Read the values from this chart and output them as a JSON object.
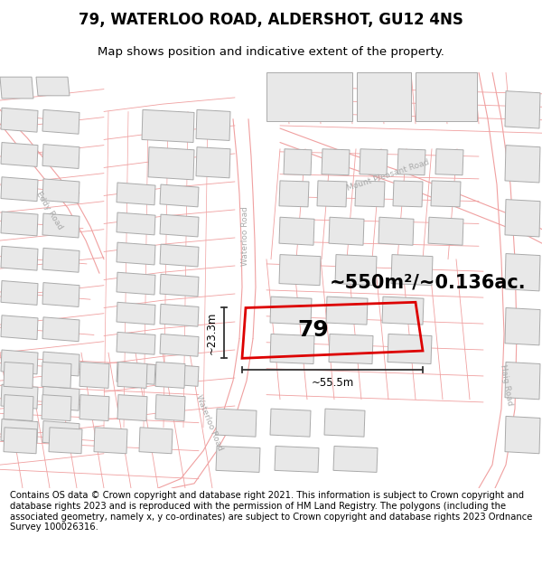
{
  "title": "79, WATERLOO ROAD, ALDERSHOT, GU12 4NS",
  "subtitle": "Map shows position and indicative extent of the property.",
  "area_text": "~550m²/~0.136ac.",
  "label_79": "79",
  "dim_width": "~55.5m",
  "dim_height": "~23.3m",
  "footer": "Contains OS data © Crown copyright and database right 2021. This information is subject to Crown copyright and database rights 2023 and is reproduced with the permission of HM Land Registry. The polygons (including the associated geometry, namely x, y co-ordinates) are subject to Crown copyright and database rights 2023 Ordnance Survey 100026316.",
  "map_bg": "#ffffff",
  "building_fill": "#e8e8e8",
  "building_edge": "#aaaaaa",
  "parcel_line": "#f0a0a0",
  "road_label_color": "#aaaaaa",
  "title_fontsize": 12,
  "subtitle_fontsize": 9.5,
  "footer_fontsize": 7.2,
  "prop_color": "#dd0000",
  "dim_color": "#333333",
  "area_fontsize": 15,
  "label_fontsize": 18
}
